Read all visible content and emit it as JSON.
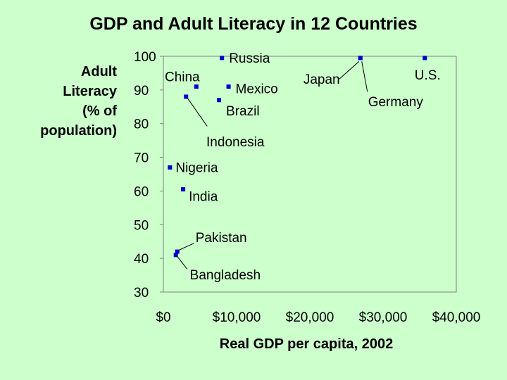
{
  "chart_data": {
    "type": "scatter",
    "title": "GDP and Adult Literacy in 12 Countries",
    "xlabel": "Real GDP per capita, 2002",
    "ylabel_lines": [
      "Adult",
      "Literacy",
      "(% of",
      "population)"
    ],
    "xlim": [
      0,
      40000
    ],
    "ylim": [
      30,
      100
    ],
    "x_ticks": [
      0,
      10000,
      20000,
      30000,
      40000
    ],
    "x_tick_labels": [
      "$0",
      "$10,000",
      "$20,000",
      "$30,000",
      "$40,000"
    ],
    "y_ticks": [
      30,
      40,
      50,
      60,
      70,
      80,
      90,
      100
    ],
    "y_tick_labels": [
      "30",
      "40",
      "50",
      "60",
      "70",
      "80",
      "90",
      "100"
    ],
    "grid": false,
    "marker_color": "#0000cc",
    "points": [
      {
        "name": "Russia",
        "x": 8000,
        "y": 99.5
      },
      {
        "name": "China",
        "x": 4500,
        "y": 91
      },
      {
        "name": "Mexico",
        "x": 8900,
        "y": 91
      },
      {
        "name": "Indonesia",
        "x": 3100,
        "y": 88
      },
      {
        "name": "Brazil",
        "x": 7600,
        "y": 87
      },
      {
        "name": "Japan",
        "x": 26900,
        "y": 99.5
      },
      {
        "name": "U.S.",
        "x": 35700,
        "y": 99.5
      },
      {
        "name": "Germany",
        "x": 26900,
        "y": 99.5
      },
      {
        "name": "Nigeria",
        "x": 900,
        "y": 67
      },
      {
        "name": "India",
        "x": 2700,
        "y": 60.5
      },
      {
        "name": "Pakistan",
        "x": 1900,
        "y": 42
      },
      {
        "name": "Bangladesh",
        "x": 1700,
        "y": 41
      }
    ]
  }
}
